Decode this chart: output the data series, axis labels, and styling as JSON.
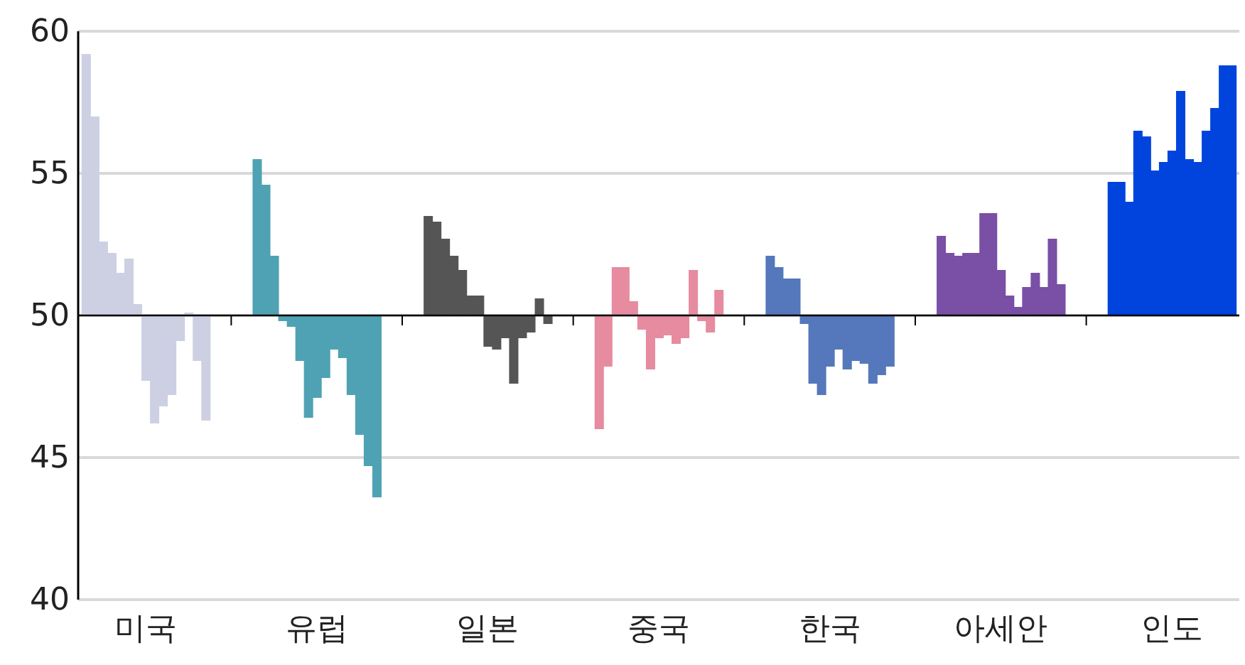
{
  "chart_data": {
    "type": "bar",
    "categories": [
      "미국",
      "유럽",
      "일본",
      "중국",
      "한국",
      "아세안",
      "인도"
    ],
    "ylim": [
      40,
      60
    ],
    "yticks": [
      40,
      45,
      50,
      55,
      60
    ],
    "grid": "y",
    "ref_lines": [
      {
        "axis": "y",
        "value": 50,
        "color": "#000000"
      }
    ],
    "series": [
      {
        "colors": [
          "#cdd0e3",
          "#4fa2b4",
          "#555555",
          "#e68ba0",
          "#5577bb",
          "#7a4fa6",
          "#0044dd"
        ],
        "base": [
          50,
          50,
          50,
          50,
          50,
          50,
          50
        ],
        "values": [
          9.2,
          5.5,
          3.5,
          -4.0,
          2.1,
          2.8,
          4.7
        ]
      },
      {
        "colors": [
          "#cdd0e3",
          "#4fa2b4",
          "#555555",
          "#e68ba0",
          "#5577bb",
          "#7a4fa6",
          "#0044dd"
        ],
        "base": [
          50,
          50,
          50,
          50,
          50,
          50,
          50
        ],
        "values": [
          7.0,
          4.6,
          3.3,
          -1.8,
          1.7,
          2.2,
          4.7
        ]
      },
      {
        "colors": [
          "#cdd0e3",
          "#4fa2b4",
          "#555555",
          "#e68ba0",
          "#5577bb",
          "#7a4fa6",
          "#0044dd"
        ],
        "base": [
          50,
          50,
          50,
          50,
          50,
          50,
          50
        ],
        "values": [
          2.6,
          2.1,
          2.7,
          1.7,
          1.3,
          2.1,
          4.0
        ]
      },
      {
        "colors": [
          "#cdd0e3",
          "#4fa2b4",
          "#555555",
          "#e68ba0",
          "#5577bb",
          "#7a4fa6",
          "#0044dd"
        ],
        "base": [
          50,
          50,
          50,
          50,
          50,
          50,
          50
        ],
        "values": [
          2.2,
          -0.2,
          2.1,
          1.7,
          1.3,
          2.2,
          6.5
        ]
      },
      {
        "colors": [
          "#cdd0e3",
          "#4fa2b4",
          "#555555",
          "#e68ba0",
          "#5577bb",
          "#7a4fa6",
          "#0044dd"
        ],
        "base": [
          50,
          50,
          50,
          50,
          50,
          50,
          50
        ],
        "values": [
          1.5,
          -0.4,
          1.6,
          0.5,
          -0.3,
          2.2,
          6.3
        ]
      },
      {
        "colors": [
          "#cdd0e3",
          "#4fa2b4",
          "#555555",
          "#e68ba0",
          "#5577bb",
          "#7a4fa6",
          "#0044dd"
        ],
        "base": [
          50,
          50,
          50,
          50,
          50,
          50,
          50
        ],
        "values": [
          2.0,
          -1.6,
          0.7,
          -0.5,
          -2.4,
          3.6,
          5.1
        ]
      },
      {
        "colors": [
          "#cdd0e3",
          "#4fa2b4",
          "#555555",
          "#e68ba0",
          "#5577bb",
          "#7a4fa6",
          "#0044dd"
        ],
        "base": [
          50,
          50,
          50,
          50,
          50,
          50,
          50
        ],
        "values": [
          0.4,
          -3.6,
          0.7,
          -1.9,
          -2.8,
          3.6,
          5.4
        ]
      },
      {
        "colors": [
          "#cdd0e3",
          "#4fa2b4",
          "#555555",
          "#e68ba0",
          "#5577bb",
          "#7a4fa6",
          "#0044dd"
        ],
        "base": [
          50,
          50,
          50,
          50,
          50,
          50,
          50
        ],
        "values": [
          -2.3,
          -2.9,
          -1.1,
          -0.8,
          -1.8,
          1.6,
          5.8
        ]
      },
      {
        "colors": [
          "#cdd0e3",
          "#4fa2b4",
          "#555555",
          "#e68ba0",
          "#5577bb",
          "#7a4fa6",
          "#0044dd"
        ],
        "base": [
          50,
          50,
          50,
          50,
          50,
          50,
          50
        ],
        "values": [
          -3.8,
          -2.2,
          -1.2,
          -0.7,
          -1.2,
          0.7,
          7.9
        ]
      },
      {
        "colors": [
          "#cdd0e3",
          "#4fa2b4",
          "#555555",
          "#e68ba0",
          "#5577bb",
          "#7a4fa6",
          "#0044dd"
        ],
        "base": [
          50,
          50,
          50,
          50,
          50,
          50,
          50
        ],
        "values": [
          -3.2,
          -1.2,
          -0.8,
          -1.0,
          -1.9,
          0.3,
          5.5
        ]
      },
      {
        "colors": [
          "#cdd0e3",
          "#4fa2b4",
          "#555555",
          "#e68ba0",
          "#5577bb",
          "#7a4fa6",
          "#0044dd"
        ],
        "base": [
          50,
          50,
          50,
          50,
          50,
          50,
          50
        ],
        "values": [
          -2.8,
          -1.5,
          -2.4,
          -0.8,
          -1.6,
          1.0,
          5.4
        ]
      },
      {
        "colors": [
          "#cdd0e3",
          "#4fa2b4",
          "#555555",
          "#e68ba0",
          "#5577bb",
          "#7a4fa6",
          "#0044dd"
        ],
        "base": [
          50,
          50,
          50,
          50,
          50,
          50,
          50
        ],
        "values": [
          -0.9,
          -2.8,
          -0.8,
          1.6,
          -1.7,
          1.5,
          6.5
        ]
      },
      {
        "colors": [
          "#cdd0e3",
          "#4fa2b4",
          "#555555",
          "#e68ba0",
          "#5577bb",
          "#7a4fa6",
          "#0044dd"
        ],
        "base": [
          50,
          50,
          50,
          50,
          50,
          50,
          50
        ],
        "values": [
          0.1,
          -4.2,
          -0.6,
          -0.2,
          -2.4,
          1.0,
          7.3
        ]
      },
      {
        "colors": [
          "#cdd0e3",
          "#4fa2b4",
          "#555555",
          "#e68ba0",
          "#5577bb",
          "#7a4fa6",
          "#0044dd"
        ],
        "base": [
          50,
          50,
          50,
          50,
          50,
          50,
          50
        ],
        "values": [
          -1.6,
          -5.3,
          0.6,
          -0.6,
          -2.1,
          2.7,
          8.8
        ]
      },
      {
        "colors": [
          "#cdd0e3",
          "#4fa2b4",
          "#555555",
          "#e68ba0",
          "#5577bb",
          "#7a4fa6",
          "#0044dd"
        ],
        "base": [
          50,
          50,
          50,
          50,
          50,
          50,
          50
        ],
        "values": [
          -3.7,
          -6.4,
          -0.3,
          0.9,
          -1.8,
          1.1,
          8.8
        ]
      }
    ]
  }
}
